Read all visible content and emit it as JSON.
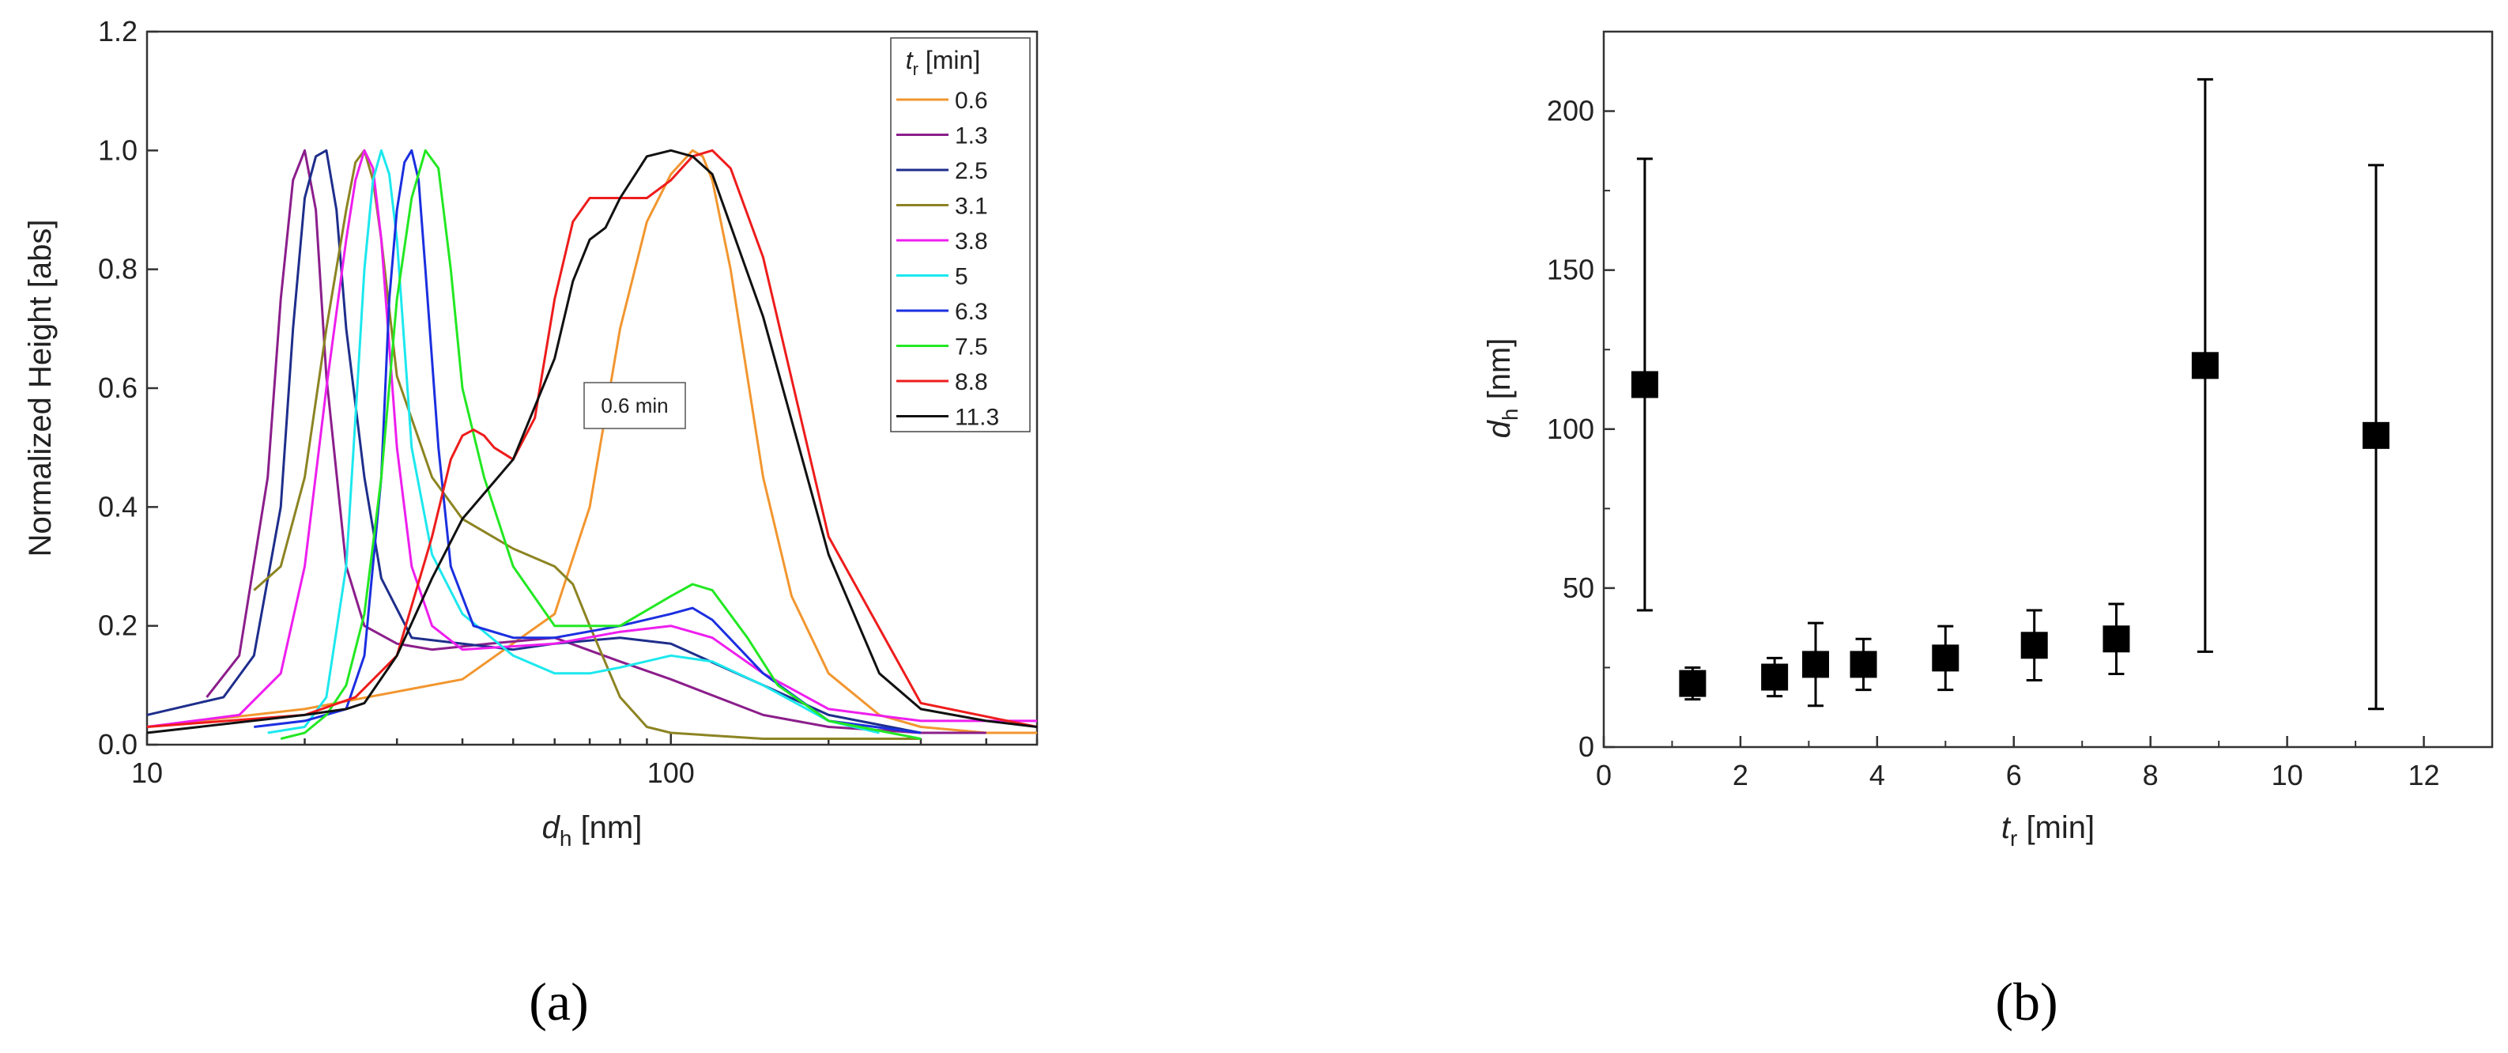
{
  "chart_data": [
    {
      "type": "line",
      "panel_label": "(a)",
      "xscale": "log",
      "xlim": [
        10,
        500
      ],
      "ylim": [
        0,
        1.2
      ],
      "xlabel": {
        "main": "d",
        "sub": "h",
        "unit": " [nm]"
      },
      "ylabel": "Normalized Height [abs]",
      "xticks": [
        10,
        100
      ],
      "xtick_labels": [
        "10",
        "100"
      ],
      "yticks": [
        0,
        0.2,
        0.4,
        0.6,
        0.8,
        1.0,
        1.2
      ],
      "ytick_labels": [
        "0.0",
        "0.2",
        "0.4",
        "0.6",
        "0.8",
        "1.0",
        "1.2"
      ],
      "legend_title": {
        "main": "t",
        "sub": "r",
        "unit": " [min]"
      },
      "legend_position": "top-right",
      "annotation": "0.6 min",
      "series": [
        {
          "name": "0.6",
          "color": "#F2962F",
          "x": [
            10,
            20,
            40,
            60,
            70,
            80,
            90,
            100,
            110,
            115,
            120,
            130,
            150,
            170,
            200,
            250,
            300,
            400,
            500
          ],
          "y": [
            0.03,
            0.06,
            0.11,
            0.22,
            0.4,
            0.7,
            0.88,
            0.96,
            1.0,
            0.99,
            0.95,
            0.8,
            0.45,
            0.25,
            0.12,
            0.05,
            0.03,
            0.02,
            0.02
          ]
        },
        {
          "name": "1.3",
          "color": "#8B1E8B",
          "x": [
            13,
            15,
            17,
            18,
            19,
            20,
            21,
            22,
            24,
            26,
            30,
            35,
            45,
            60,
            80,
            100,
            150,
            200,
            300,
            400
          ],
          "y": [
            0.08,
            0.15,
            0.45,
            0.75,
            0.95,
            1.0,
            0.9,
            0.62,
            0.3,
            0.2,
            0.17,
            0.16,
            0.17,
            0.18,
            0.14,
            0.11,
            0.05,
            0.03,
            0.02,
            0.02
          ]
        },
        {
          "name": "2.5",
          "color": "#1E2E8C",
          "x": [
            10,
            14,
            16,
            18,
            19,
            20,
            21,
            22,
            23,
            24,
            26,
            28,
            32,
            40,
            50,
            60,
            80,
            100,
            150,
            200,
            300
          ],
          "y": [
            0.05,
            0.08,
            0.15,
            0.4,
            0.7,
            0.92,
            0.99,
            1.0,
            0.9,
            0.7,
            0.45,
            0.28,
            0.18,
            0.17,
            0.16,
            0.17,
            0.18,
            0.17,
            0.1,
            0.05,
            0.02
          ]
        },
        {
          "name": "3.1",
          "color": "#8C8423",
          "x": [
            16,
            18,
            20,
            22,
            24,
            25,
            26,
            27,
            28,
            30,
            35,
            40,
            50,
            60,
            65,
            70,
            80,
            90,
            100,
            150,
            200,
            300
          ],
          "y": [
            0.26,
            0.3,
            0.45,
            0.7,
            0.9,
            0.98,
            1.0,
            0.95,
            0.85,
            0.62,
            0.45,
            0.38,
            0.33,
            0.3,
            0.27,
            0.2,
            0.08,
            0.03,
            0.02,
            0.01,
            0.01,
            0.01
          ]
        },
        {
          "name": "3.8",
          "color": "#EE1EEE",
          "x": [
            10,
            15,
            18,
            20,
            22,
            24,
            25,
            26,
            27,
            28,
            30,
            32,
            35,
            40,
            60,
            80,
            100,
            120,
            150,
            200,
            300,
            500
          ],
          "y": [
            0.03,
            0.05,
            0.12,
            0.3,
            0.6,
            0.85,
            0.95,
            1.0,
            0.97,
            0.85,
            0.5,
            0.3,
            0.2,
            0.16,
            0.17,
            0.19,
            0.2,
            0.18,
            0.12,
            0.06,
            0.04,
            0.04
          ]
        },
        {
          "name": "5",
          "color": "#1CE8EE",
          "x": [
            17,
            20,
            22,
            24,
            25,
            26,
            27,
            28,
            29,
            30,
            32,
            35,
            40,
            50,
            60,
            70,
            80,
            100,
            120,
            150,
            200,
            250
          ],
          "y": [
            0.02,
            0.03,
            0.08,
            0.3,
            0.55,
            0.8,
            0.95,
            1.0,
            0.96,
            0.85,
            0.5,
            0.32,
            0.22,
            0.15,
            0.12,
            0.12,
            0.13,
            0.15,
            0.14,
            0.1,
            0.04,
            0.02
          ]
        },
        {
          "name": "6.3",
          "color": "#1B2FE0",
          "x": [
            16,
            20,
            24,
            26,
            28,
            29,
            30,
            31,
            32,
            33,
            34,
            36,
            38,
            42,
            50,
            60,
            80,
            100,
            110,
            120,
            150,
            200,
            300
          ],
          "y": [
            0.03,
            0.04,
            0.06,
            0.15,
            0.45,
            0.75,
            0.9,
            0.98,
            1.0,
            0.95,
            0.8,
            0.5,
            0.3,
            0.2,
            0.18,
            0.18,
            0.2,
            0.22,
            0.23,
            0.21,
            0.12,
            0.04,
            0.02
          ]
        },
        {
          "name": "7.5",
          "color": "#22E822",
          "x": [
            18,
            20,
            22,
            24,
            26,
            28,
            30,
            32,
            34,
            36,
            38,
            40,
            44,
            50,
            60,
            80,
            100,
            110,
            120,
            140,
            160,
            200,
            300
          ],
          "y": [
            0.01,
            0.02,
            0.05,
            0.1,
            0.22,
            0.45,
            0.75,
            0.92,
            1.0,
            0.97,
            0.8,
            0.6,
            0.45,
            0.3,
            0.2,
            0.2,
            0.25,
            0.27,
            0.26,
            0.18,
            0.1,
            0.04,
            0.01
          ]
        },
        {
          "name": "8.8",
          "color": "#EE1C1C",
          "x": [
            10,
            20,
            25,
            30,
            35,
            38,
            40,
            42,
            44,
            46,
            50,
            55,
            60,
            65,
            70,
            75,
            80,
            90,
            100,
            110,
            120,
            130,
            150,
            200,
            300,
            500
          ],
          "y": [
            0.03,
            0.05,
            0.08,
            0.15,
            0.35,
            0.48,
            0.52,
            0.53,
            0.52,
            0.5,
            0.48,
            0.55,
            0.75,
            0.88,
            0.92,
            0.92,
            0.92,
            0.92,
            0.95,
            0.99,
            1.0,
            0.97,
            0.82,
            0.35,
            0.07,
            0.03
          ]
        },
        {
          "name": "11.3",
          "color": "#111111",
          "x": [
            10,
            20,
            24,
            26,
            30,
            35,
            40,
            50,
            60,
            65,
            70,
            75,
            80,
            90,
            100,
            110,
            120,
            150,
            200,
            250,
            300,
            400,
            500
          ],
          "y": [
            0.02,
            0.05,
            0.06,
            0.07,
            0.15,
            0.28,
            0.38,
            0.48,
            0.65,
            0.78,
            0.85,
            0.87,
            0.92,
            0.99,
            1.0,
            0.99,
            0.96,
            0.72,
            0.32,
            0.12,
            0.06,
            0.04,
            0.03
          ]
        }
      ]
    },
    {
      "type": "scatter",
      "panel_label": "(b)",
      "xlim": [
        0,
        13
      ],
      "ylim": [
        0,
        225
      ],
      "xlabel": {
        "main": "t",
        "sub": "r",
        "unit": " [min]"
      },
      "ylabel": {
        "main": "d",
        "sub": "h",
        "unit": " [nm]"
      },
      "xticks": [
        0,
        2,
        4,
        6,
        8,
        10,
        12
      ],
      "xtick_labels": [
        "0",
        "2",
        "4",
        "6",
        "8",
        "10",
        "12"
      ],
      "yticks": [
        0,
        50,
        100,
        150,
        200
      ],
      "ytick_labels": [
        "0",
        "50",
        "100",
        "150",
        "200"
      ],
      "marker": "square",
      "color": "#000000",
      "points": [
        {
          "x": 0.6,
          "y": 114,
          "err_low": 43,
          "err_high": 185
        },
        {
          "x": 1.3,
          "y": 20,
          "err_low": 15,
          "err_high": 25
        },
        {
          "x": 2.5,
          "y": 22,
          "err_low": 16,
          "err_high": 28
        },
        {
          "x": 3.1,
          "y": 26,
          "err_low": 13,
          "err_high": 39
        },
        {
          "x": 3.8,
          "y": 26,
          "err_low": 18,
          "err_high": 34
        },
        {
          "x": 5.0,
          "y": 28,
          "err_low": 18,
          "err_high": 38
        },
        {
          "x": 6.3,
          "y": 32,
          "err_low": 21,
          "err_high": 43
        },
        {
          "x": 7.5,
          "y": 34,
          "err_low": 23,
          "err_high": 45
        },
        {
          "x": 8.8,
          "y": 120,
          "err_low": 30,
          "err_high": 210
        },
        {
          "x": 11.3,
          "y": 98,
          "err_low": 12,
          "err_high": 183
        }
      ]
    }
  ]
}
